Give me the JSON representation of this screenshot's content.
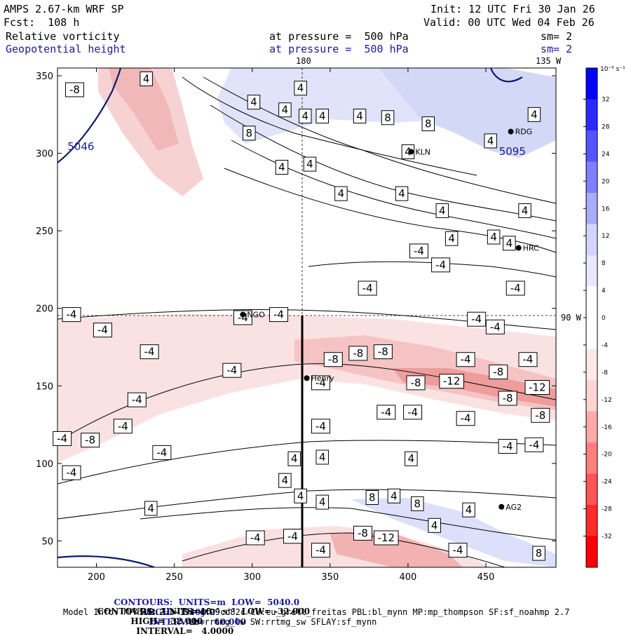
{
  "header": {
    "model": "AMPS 2.67-km WRF SP",
    "fcst": "Fcst:  108 h",
    "init": "Init: 12 UTC Fri 30 Jan 26",
    "valid": "Valid: 00 UTC Wed 04 Feb 26",
    "field1_name": "Relative vorticity",
    "field1_level": "at pressure =  500 hPa",
    "field1_sm": "sm= 2",
    "field2_name": "Geopotential height",
    "field2_level": "at pressure =  500 hPa",
    "field2_sm": "sm= 2",
    "lon_180": "180",
    "lon_135w": "135 W",
    "lon_90w": "90 W"
  },
  "footer": {
    "line1_a": "CONTOURS:  UNITS=m  LOW=  5040.0",
    "line1_b": "HIGH=  5100.0",
    "line1_c": "INTERVAL=   60.000",
    "line2_a": "CONTOURS:  UNITS=10⁻⁵ s⁻¹  LOW= -32.000",
    "line2_b": "HIGH=  32.000",
    "line2_c": "INTERVAL=   4.0000",
    "line3": "Model Info: MPASv8.2.3-194-gf29cd82c CU:cu_grell_freitas PBL:bl_mynn MP:mp_thompson SF:sf_noahmp 2.7",
    "line4": "LW:rrtmg_lw SW:rrtmg_sw SFLAY:sf_mynn"
  },
  "colors": {
    "frame": "#000000",
    "height_contour": "#0a1a6e",
    "colorbar": [
      "#ff0000",
      "#ff2a2a",
      "#ff5555",
      "#ff7f7f",
      "#ffaaaa",
      "#ffd4d4",
      "#ffe8e8",
      "#ffffff",
      "#ffffff",
      "#e8e8ff",
      "#d4d4ff",
      "#aaaaff",
      "#7f7fff",
      "#5555ff",
      "#2a2aff",
      "#0000ff"
    ],
    "positive_shade": "#d8dcf8",
    "negative_shade": "#f6c8c8",
    "strong_negative": "#ee9a9a"
  },
  "chart_data": {
    "type": "heatmap",
    "title": "AMPS 2.67-km WRF SP 500 hPa relative vorticity and geopotential height",
    "xlabel": "",
    "ylabel": "",
    "xlim": [
      175,
      495
    ],
    "ylim": [
      33,
      355
    ],
    "x_ticks": [
      200,
      250,
      300,
      350,
      400,
      450
    ],
    "y_ticks": [
      50,
      100,
      150,
      200,
      250,
      300,
      350
    ],
    "colorbar": {
      "unit": "10⁻⁵ s⁻¹",
      "ticks": [
        32,
        28,
        24,
        20,
        16,
        12,
        8,
        4,
        0,
        -4,
        -8,
        -12,
        -16,
        -20,
        -24,
        -28,
        -32
      ]
    },
    "height_labels": [
      {
        "value": "5046",
        "x": 190,
        "y": 302
      },
      {
        "value": "5095",
        "x": 467,
        "y": 299
      }
    ],
    "vorticity_labels": [
      {
        "v": "-8",
        "x": 186,
        "y": 341
      },
      {
        "v": "4",
        "x": 232,
        "y": 348
      },
      {
        "v": "4",
        "x": 331,
        "y": 342
      },
      {
        "v": "4",
        "x": 321,
        "y": 328
      },
      {
        "v": "4",
        "x": 301,
        "y": 333
      },
      {
        "v": "4",
        "x": 345,
        "y": 324
      },
      {
        "v": "4",
        "x": 334,
        "y": 324
      },
      {
        "v": "8",
        "x": 298,
        "y": 313
      },
      {
        "v": "4",
        "x": 319,
        "y": 291
      },
      {
        "v": "4",
        "x": 337,
        "y": 293
      },
      {
        "v": "4",
        "x": 369,
        "y": 324
      },
      {
        "v": "8",
        "x": 387,
        "y": 323
      },
      {
        "v": "8",
        "x": 413,
        "y": 319
      },
      {
        "v": "4",
        "x": 400,
        "y": 301
      },
      {
        "v": "4",
        "x": 453,
        "y": 308
      },
      {
        "v": "4",
        "x": 481,
        "y": 325
      },
      {
        "v": "4",
        "x": 357,
        "y": 274
      },
      {
        "v": "4",
        "x": 396,
        "y": 274
      },
      {
        "v": "4",
        "x": 422,
        "y": 263
      },
      {
        "v": "4",
        "x": 475,
        "y": 263
      },
      {
        "v": "4",
        "x": 428,
        "y": 245
      },
      {
        "v": "4",
        "x": 455,
        "y": 246
      },
      {
        "v": "4",
        "x": 465,
        "y": 242
      },
      {
        "v": "-4",
        "x": 407,
        "y": 237
      },
      {
        "v": "-4",
        "x": 421,
        "y": 228
      },
      {
        "v": "-4",
        "x": 374,
        "y": 213
      },
      {
        "v": "-4",
        "x": 469,
        "y": 213
      },
      {
        "v": "-4",
        "x": 184,
        "y": 196
      },
      {
        "v": "-4",
        "x": 294,
        "y": 194
      },
      {
        "v": "-4",
        "x": 317,
        "y": 196
      },
      {
        "v": "-4",
        "x": 204,
        "y": 186
      },
      {
        "v": "-4",
        "x": 444,
        "y": 193
      },
      {
        "v": "-4",
        "x": 456,
        "y": 188
      },
      {
        "v": "-4",
        "x": 234,
        "y": 172
      },
      {
        "v": "-8",
        "x": 352,
        "y": 167
      },
      {
        "v": "-8",
        "x": 368,
        "y": 171
      },
      {
        "v": "-8",
        "x": 384,
        "y": 172
      },
      {
        "v": "-4",
        "x": 437,
        "y": 167
      },
      {
        "v": "-4",
        "x": 477,
        "y": 167
      },
      {
        "v": "-4",
        "x": 287,
        "y": 160
      },
      {
        "v": "-8",
        "x": 458,
        "y": 159
      },
      {
        "v": "-12",
        "x": 428,
        "y": 153
      },
      {
        "v": "-8",
        "x": 405,
        "y": 152
      },
      {
        "v": "-4",
        "x": 344,
        "y": 152
      },
      {
        "v": "-12",
        "x": 483,
        "y": 149
      },
      {
        "v": "-8",
        "x": 464,
        "y": 142
      },
      {
        "v": "-4",
        "x": 226,
        "y": 141
      },
      {
        "v": "-4",
        "x": 386,
        "y": 133
      },
      {
        "v": "-4",
        "x": 403,
        "y": 133
      },
      {
        "v": "-8",
        "x": 485,
        "y": 131
      },
      {
        "v": "-4",
        "x": 437,
        "y": 129
      },
      {
        "v": "-4",
        "x": 217,
        "y": 124
      },
      {
        "v": "-4",
        "x": 344,
        "y": 124
      },
      {
        "v": "-4",
        "x": 178,
        "y": 116
      },
      {
        "v": "-8",
        "x": 196,
        "y": 115
      },
      {
        "v": "-4",
        "x": 481,
        "y": 112
      },
      {
        "v": "-4",
        "x": 464,
        "y": 111
      },
      {
        "v": "-4",
        "x": 242,
        "y": 107
      },
      {
        "v": "4",
        "x": 327,
        "y": 103
      },
      {
        "v": "4",
        "x": 345,
        "y": 104
      },
      {
        "v": "4",
        "x": 402,
        "y": 103
      },
      {
        "v": "-4",
        "x": 184,
        "y": 94
      },
      {
        "v": "4",
        "x": 321,
        "y": 89
      },
      {
        "v": "4",
        "x": 331,
        "y": 79
      },
      {
        "v": "4",
        "x": 345,
        "y": 75
      },
      {
        "v": "8",
        "x": 377,
        "y": 78
      },
      {
        "v": "4",
        "x": 391,
        "y": 79
      },
      {
        "v": "8",
        "x": 406,
        "y": 74
      },
      {
        "v": "4",
        "x": 439,
        "y": 70
      },
      {
        "v": "4",
        "x": 235,
        "y": 71
      },
      {
        "v": "4",
        "x": 417,
        "y": 60
      },
      {
        "v": "-8",
        "x": 371,
        "y": 55
      },
      {
        "v": "-12",
        "x": 386,
        "y": 52
      },
      {
        "v": "-4",
        "x": 302,
        "y": 52
      },
      {
        "v": "-4",
        "x": 326,
        "y": 53
      },
      {
        "v": "-4",
        "x": 432,
        "y": 44
      },
      {
        "v": "-4",
        "x": 344,
        "y": 44
      },
      {
        "v": "8",
        "x": 484,
        "y": 42
      }
    ],
    "stations": [
      {
        "name": "RDG",
        "x": 466,
        "y": 314
      },
      {
        "name": "KLN",
        "x": 402,
        "y": 301
      },
      {
        "name": "HRC",
        "x": 471,
        "y": 239
      },
      {
        "name": "NGO",
        "x": 294,
        "y": 196
      },
      {
        "name": "Henry",
        "x": 335,
        "y": 155
      },
      {
        "name": "AG2",
        "x": 460,
        "y": 72
      }
    ],
    "reference_lines": {
      "vertical_x": 335,
      "horizontal_y": 196,
      "section_from_y": 196,
      "section_to_y": 33
    }
  }
}
